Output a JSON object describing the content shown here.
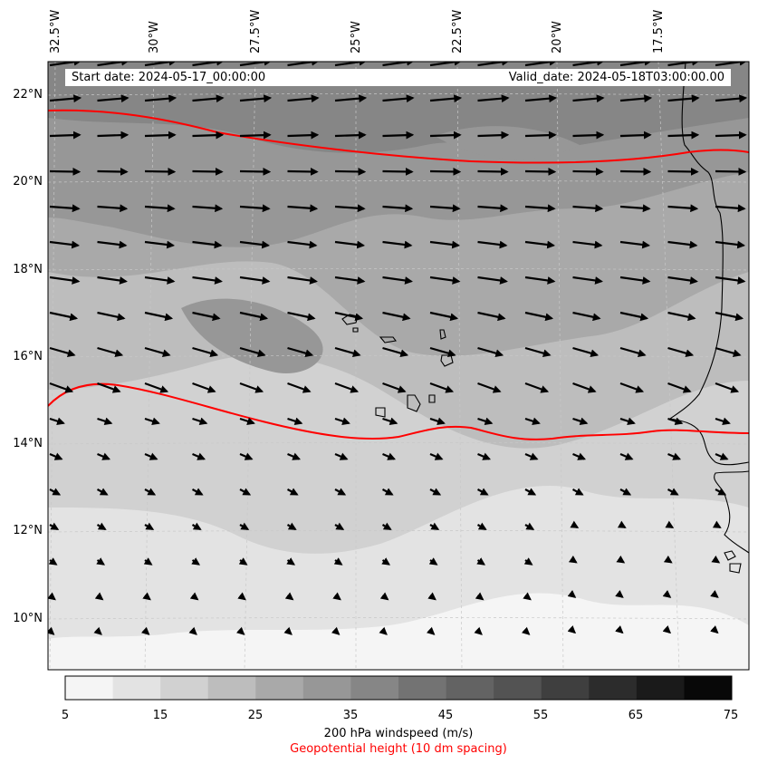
{
  "map": {
    "start_date": "Start date: 2024-05-17_00:00:00",
    "valid_date": "Valid_date: 2024-05-18T03:00:00.00",
    "lon_labels": [
      "32.5°W",
      "30°W",
      "27.5°W",
      "25°W",
      "22.5°W",
      "20°W",
      "17.5°W"
    ],
    "lat_labels": [
      "22°N",
      "20°N",
      "18°N",
      "16°N",
      "14°N",
      "12°N",
      "10°N"
    ],
    "region": "Cabo Verde / West African coast",
    "wind_arrow_color": "#000000",
    "contour_color": "#ff0000"
  },
  "colorbar": {
    "ticks": [
      "5",
      "15",
      "25",
      "35",
      "45",
      "55",
      "65",
      "75"
    ],
    "colors": [
      "#f5f5f5",
      "#e3e3e3",
      "#d1d1d1",
      "#bdbdbd",
      "#a9a9a9",
      "#979797",
      "#868686",
      "#737373",
      "#636363",
      "#535353",
      "#3f3f3f",
      "#2c2c2c",
      "#1a1a1a",
      "#080808"
    ],
    "title": "200 hPa windspeed (m/s)",
    "subtitle": "Geopotential height (10 dm spacing)",
    "subtitle_color": "#ff0000"
  }
}
